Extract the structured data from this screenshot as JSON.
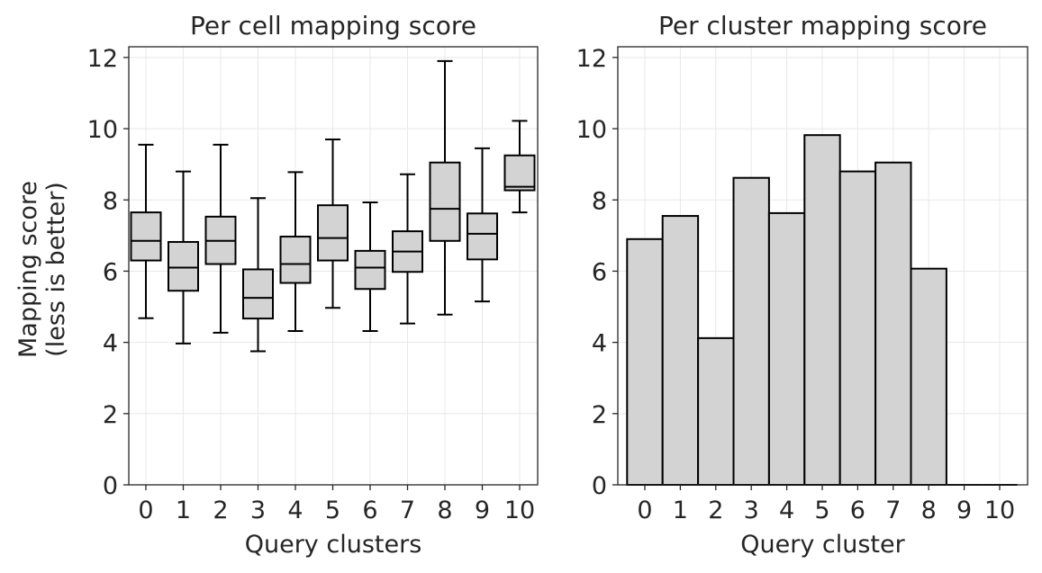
{
  "chart_data": [
    {
      "type": "box",
      "title": "Per cell mapping score",
      "xlabel": "Query clusters",
      "ylabel": "Mapping score\n(less is better)",
      "ylim": [
        0,
        12.3
      ],
      "yticks": [
        0,
        2,
        4,
        6,
        8,
        10,
        12
      ],
      "categories": [
        "0",
        "1",
        "2",
        "3",
        "4",
        "5",
        "6",
        "7",
        "8",
        "9",
        "10"
      ],
      "box_color": "#d3d3d3",
      "grid": true,
      "boxes": [
        {
          "category": "0",
          "whisker_low": 4.68,
          "q1": 6.3,
          "median": 6.85,
          "q3": 7.65,
          "whisker_high": 9.55
        },
        {
          "category": "1",
          "whisker_low": 3.97,
          "q1": 5.45,
          "median": 6.1,
          "q3": 6.82,
          "whisker_high": 8.8
        },
        {
          "category": "2",
          "whisker_low": 4.27,
          "q1": 6.2,
          "median": 6.85,
          "q3": 7.53,
          "whisker_high": 9.55
        },
        {
          "category": "3",
          "whisker_low": 3.75,
          "q1": 4.67,
          "median": 5.25,
          "q3": 6.05,
          "whisker_high": 8.05
        },
        {
          "category": "4",
          "whisker_low": 4.32,
          "q1": 5.67,
          "median": 6.2,
          "q3": 6.97,
          "whisker_high": 8.78
        },
        {
          "category": "5",
          "whisker_low": 4.97,
          "q1": 6.3,
          "median": 6.93,
          "q3": 7.85,
          "whisker_high": 9.7
        },
        {
          "category": "6",
          "whisker_low": 4.32,
          "q1": 5.5,
          "median": 6.1,
          "q3": 6.57,
          "whisker_high": 7.93
        },
        {
          "category": "7",
          "whisker_low": 4.53,
          "q1": 5.98,
          "median": 6.55,
          "q3": 7.12,
          "whisker_high": 8.72
        },
        {
          "category": "8",
          "whisker_low": 4.78,
          "q1": 6.85,
          "median": 7.75,
          "q3": 9.05,
          "whisker_high": 11.9
        },
        {
          "category": "9",
          "whisker_low": 5.15,
          "q1": 6.33,
          "median": 7.05,
          "q3": 7.62,
          "whisker_high": 9.45
        },
        {
          "category": "10",
          "whisker_low": 7.65,
          "q1": 8.27,
          "median": 8.37,
          "q3": 9.25,
          "whisker_high": 10.22
        }
      ]
    },
    {
      "type": "bar",
      "title": "Per cluster mapping score",
      "xlabel": "Query cluster",
      "ylabel": "",
      "ylim": [
        0,
        12.3
      ],
      "yticks": [
        0,
        2,
        4,
        6,
        8,
        10,
        12
      ],
      "categories": [
        "0",
        "1",
        "2",
        "3",
        "4",
        "5",
        "6",
        "7",
        "8",
        "9",
        "10"
      ],
      "values": [
        6.9,
        7.55,
        4.12,
        8.62,
        7.63,
        9.82,
        8.8,
        9.05,
        6.07,
        0,
        0
      ],
      "bar_color": "#d3d3d3",
      "grid": true
    }
  ]
}
